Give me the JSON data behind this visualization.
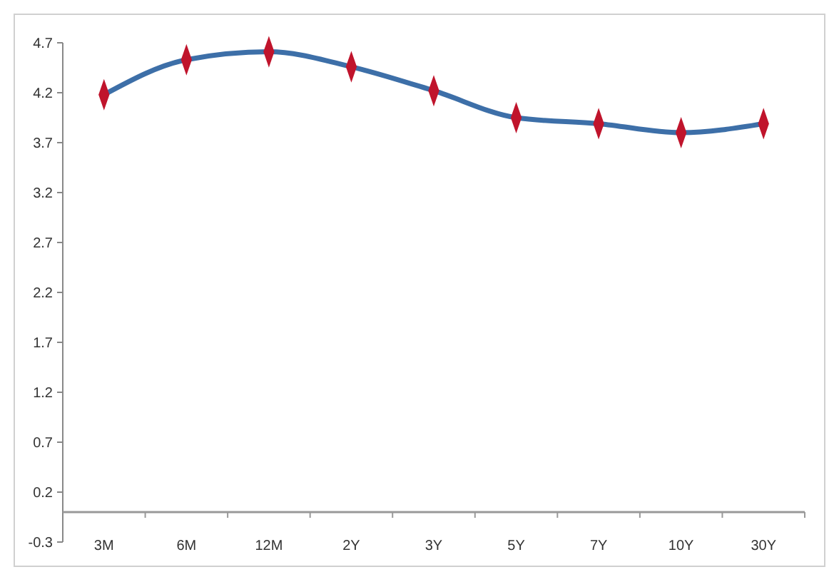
{
  "chart_data": {
    "type": "line",
    "categories": [
      "3M",
      "6M",
      "12M",
      "2Y",
      "3Y",
      "5Y",
      "7Y",
      "10Y",
      "30Y"
    ],
    "series": [
      {
        "color": "#3d6fa8",
        "values": [
          4.18,
          4.53,
          4.61,
          4.46,
          4.22,
          3.95,
          3.89,
          3.8,
          3.89
        ]
      }
    ],
    "ylim": [
      -0.3,
      4.7
    ],
    "yticks": [
      -0.3,
      0.2,
      0.7,
      1.2,
      1.7,
      2.2,
      2.7,
      3.2,
      3.7,
      4.2,
      4.7
    ],
    "marker": "diamond",
    "line_style": "solid",
    "grid": false
  }
}
